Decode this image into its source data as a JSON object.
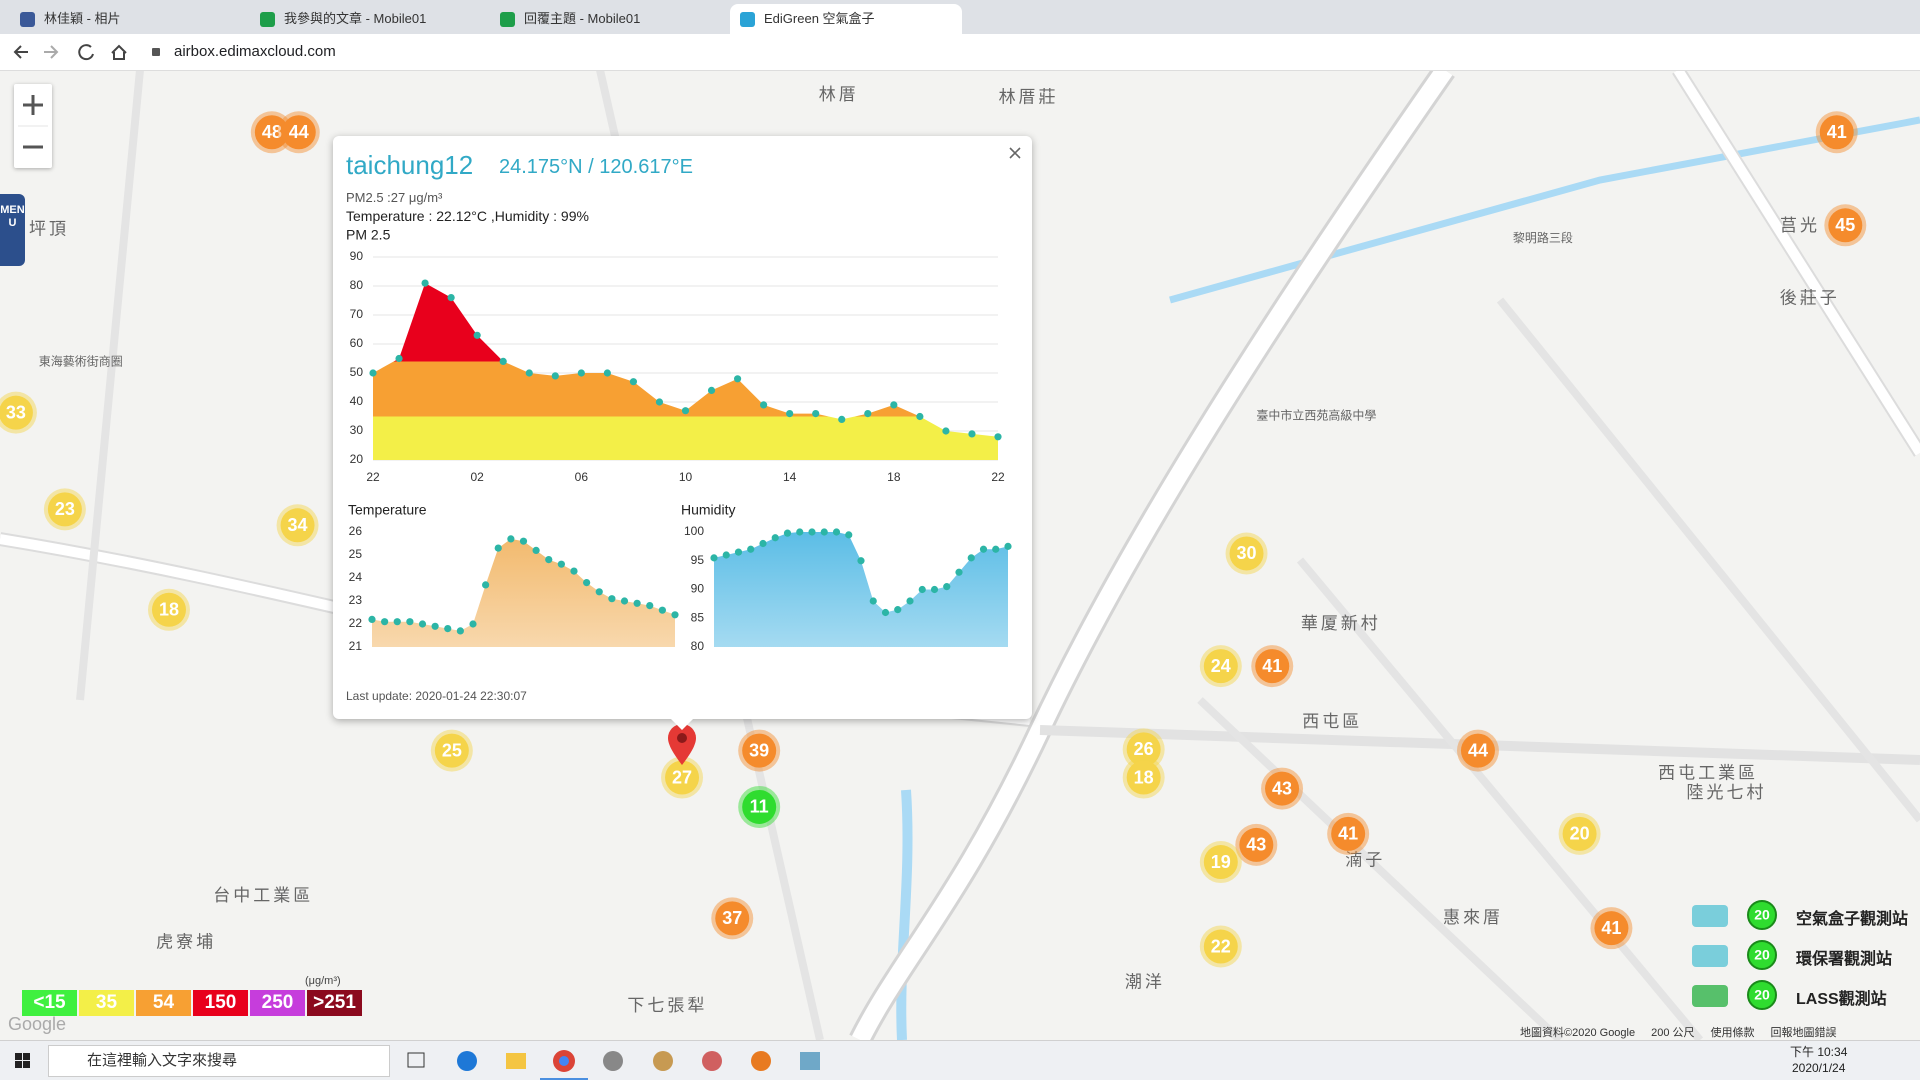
{
  "browser": {
    "tabs": [
      "林佳穎 - 相片",
      "我參與的文章 - Mobile01",
      "回覆主題 - Mobile01",
      "EdiGreen 空氣盒子"
    ],
    "url": "airbox.edimaxcloud.com"
  },
  "map": {
    "menu": "MENU",
    "labels": [
      "林厝",
      "林厝莊",
      "坪頂",
      "東海藝術街商圈",
      "華厦新村",
      "西屯區",
      "台中工業區",
      "虎寮埔",
      "下七張犁",
      "湳子",
      "惠來厝",
      "潮洋",
      "西屯工業區",
      "陸光七村",
      "後莊子",
      "莒光",
      "臺中市立西苑高級中學",
      "黎明路三段"
    ],
    "markers": [
      {
        "value": 48,
        "color": "#f58b2c"
      },
      {
        "value": 44,
        "color": "#f58b2c"
      },
      {
        "value": 41,
        "color": "#f58b2c"
      },
      {
        "value": 45,
        "color": "#f58b2c"
      },
      {
        "value": 33,
        "color": "#f5d44a"
      },
      {
        "value": 23,
        "color": "#f5d44a"
      },
      {
        "value": 34,
        "color": "#f5d44a"
      },
      {
        "value": 18,
        "color": "#f5d44a"
      },
      {
        "value": 30,
        "color": "#f5d44a"
      },
      {
        "value": 24,
        "color": "#f5d44a"
      },
      {
        "value": 41,
        "color": "#f58b2c"
      },
      {
        "value": 25,
        "color": "#f5d44a"
      },
      {
        "value": 39,
        "color": "#f58b2c"
      },
      {
        "value": 27,
        "color": "#f5d44a"
      },
      {
        "value": 11,
        "color": "#2fdc2f"
      },
      {
        "value": 26,
        "color": "#f5d44a"
      },
      {
        "value": 18,
        "color": "#f5d44a"
      },
      {
        "value": 44,
        "color": "#f58b2c"
      },
      {
        "value": 43,
        "color": "#f58b2c"
      },
      {
        "value": 41,
        "color": "#f58b2c"
      },
      {
        "value": 43,
        "color": "#f58b2c"
      },
      {
        "value": 19,
        "color": "#f5d44a"
      },
      {
        "value": 20,
        "color": "#f5d44a"
      },
      {
        "value": 37,
        "color": "#f58b2c"
      },
      {
        "value": 22,
        "color": "#f5d44a"
      },
      {
        "value": 41,
        "color": "#f58b2c"
      }
    ],
    "google": "Google",
    "attribution": "地圖資料©2020 Google",
    "scale": "200 公尺",
    "terms": "使用條款",
    "report": "回報地圖錯誤"
  },
  "popup": {
    "title": "taichung12",
    "coords": "24.175°N / 120.617°E",
    "pm_text": "PM2.5 :27 μg/m³",
    "env_text": "Temperature : 22.12°C ,Humidity : 99%",
    "last_update": "Last update: 2020-01-24 22:30:07"
  },
  "chart_data": [
    {
      "type": "area",
      "title": "PM 2.5",
      "categories": [
        "22",
        null,
        null,
        null,
        "02",
        null,
        null,
        null,
        "06",
        null,
        null,
        null,
        "10",
        null,
        null,
        null,
        "14",
        null,
        null,
        null,
        "18",
        null,
        null,
        null,
        "22"
      ],
      "values": [
        50,
        55,
        81,
        76,
        63,
        54,
        50,
        49,
        50,
        50,
        47,
        40,
        37,
        44,
        48,
        39,
        36,
        36,
        34,
        36,
        39,
        35,
        30,
        29,
        28
      ],
      "color": "#2cb5a6",
      "ylim": [
        20,
        90
      ],
      "yticks": [
        20,
        30,
        40,
        50,
        60,
        70,
        80,
        90
      ],
      "grid": true
    },
    {
      "type": "area",
      "title": "Temperature",
      "values": [
        22.2,
        22.1,
        22.1,
        22.1,
        22.0,
        21.9,
        21.8,
        21.7,
        22.0,
        23.7,
        25.3,
        25.7,
        25.6,
        25.2,
        24.8,
        24.6,
        24.3,
        23.8,
        23.4,
        23.1,
        23.0,
        22.9,
        22.8,
        22.6,
        22.4
      ],
      "color": "#2cb5a6",
      "fill": "#f2b86a",
      "ylim": [
        21,
        26
      ],
      "yticks": [
        21,
        22,
        23,
        24,
        25,
        26
      ],
      "grid": false
    },
    {
      "type": "area",
      "title": "Humidity",
      "values": [
        95.5,
        96,
        96.5,
        97,
        98,
        99,
        99.8,
        100,
        100,
        100,
        100,
        99.5,
        95,
        88,
        86,
        86.5,
        88,
        90,
        90,
        90.5,
        93,
        95.5,
        97,
        97,
        97.5
      ],
      "color": "#2cb5a6",
      "fill": "#5bbde6",
      "ylim": [
        80,
        100
      ],
      "yticks": [
        80,
        85,
        90,
        95,
        100
      ],
      "grid": false
    }
  ],
  "legend": {
    "unit": "(μg/m³)",
    "items": [
      {
        "label": "<15",
        "color": "#3ff03f"
      },
      {
        "label": 35,
        "color": "#f3ef48"
      },
      {
        "label": 54,
        "color": "#f7a033"
      },
      {
        "label": 150,
        "color": "#e8001c"
      },
      {
        "label": 250,
        "color": "#c63ddc"
      },
      {
        "label": ">251",
        "color": "#8b0a1e"
      }
    ]
  },
  "stations": [
    {
      "name": "空氣盒子觀測站",
      "count": 20
    },
    {
      "name": "環保署觀測站",
      "count": 20
    },
    {
      "name": "LASS觀測站",
      "count": 20
    }
  ],
  "taskbar": {
    "search": "在這裡輸入文字來搜尋",
    "time": "下午 10:34",
    "date": "2020/1/24"
  }
}
